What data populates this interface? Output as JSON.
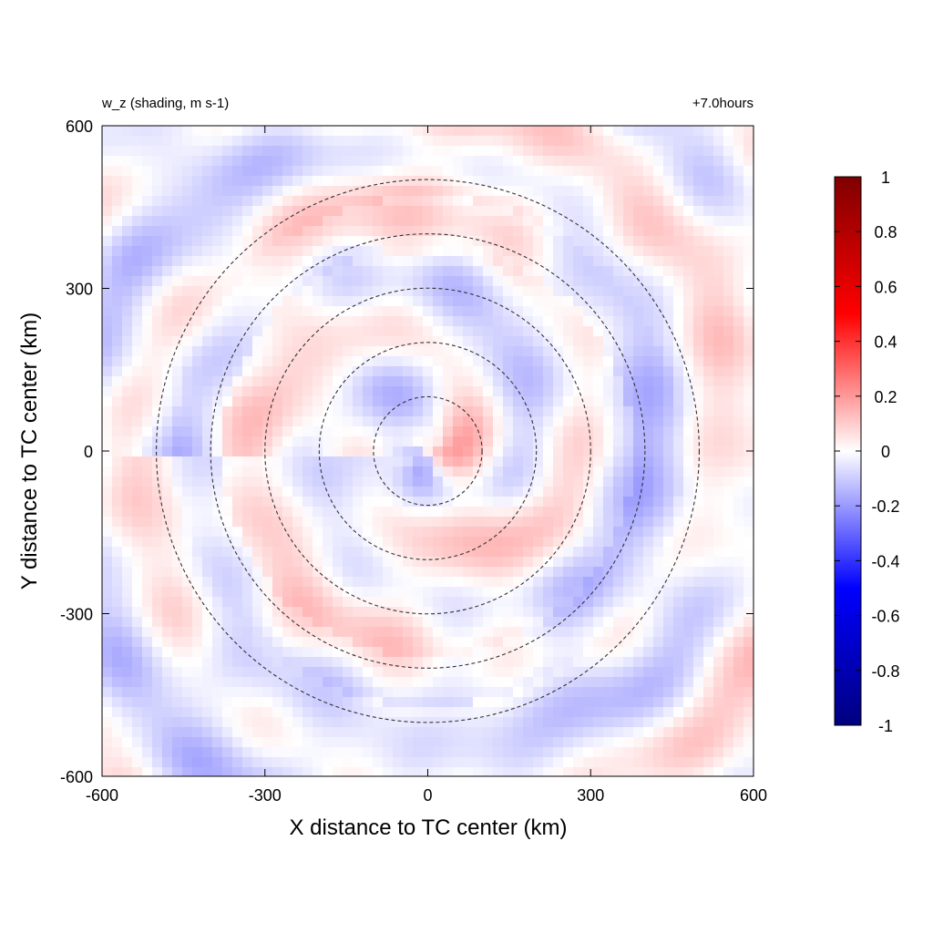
{
  "chart_data": {
    "type": "heatmap",
    "title_left": "w_z (shading, m s-1)",
    "title_right": "+7.0hours",
    "xlabel": "X distance to TC center (km)",
    "ylabel": "Y distance to TC center (km)",
    "xlim": [
      -600,
      600
    ],
    "ylim": [
      -600,
      600
    ],
    "xticks": [
      "-600",
      "-300",
      "0",
      "300",
      "600"
    ],
    "yticks": [
      "-600",
      "-300",
      "0",
      "300",
      "600"
    ],
    "xtick_values": [
      -600,
      -300,
      0,
      300,
      600
    ],
    "ytick_values": [
      -600,
      -300,
      0,
      300,
      600
    ],
    "colorbar": {
      "range": [
        -1,
        1
      ],
      "ticks": [
        "1",
        "0.8",
        "0.6",
        "0.4",
        "0.2",
        "0",
        "-0.2",
        "-0.4",
        "-0.6",
        "-0.8",
        "-1"
      ],
      "tick_values": [
        1,
        0.8,
        0.6,
        0.4,
        0.2,
        0,
        -0.2,
        -0.4,
        -0.6,
        -0.8,
        -1
      ],
      "colors": {
        "min": "#00007f",
        "low": "#0000ff",
        "mid": "#ffffff",
        "high": "#ff0000",
        "max": "#7f0000"
      }
    },
    "range_rings_km": [
      100,
      200,
      300,
      400,
      500
    ],
    "ring_color": "#333333",
    "grid": false,
    "legend": "colorbar-right"
  }
}
